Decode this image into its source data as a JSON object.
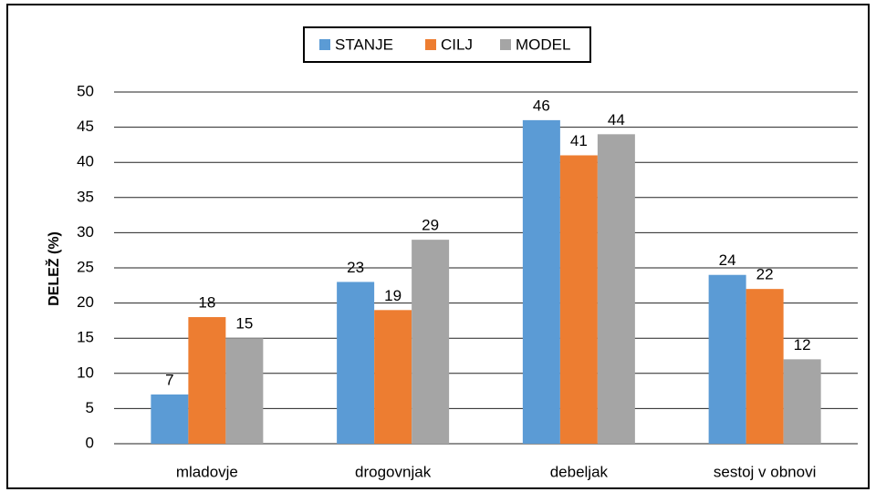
{
  "chart_data": {
    "type": "bar",
    "y_label": "DELEŽ (%)",
    "categories": [
      "mladovje",
      "drogovnjak",
      "debeljak",
      "sestoj v obnovi"
    ],
    "series": [
      {
        "name": "STANJE",
        "color": "#5b9bd5",
        "values": [
          7,
          23,
          46,
          24
        ]
      },
      {
        "name": "CILJ",
        "color": "#ed7d31",
        "values": [
          18,
          19,
          41,
          22
        ]
      },
      {
        "name": "MODEL",
        "color": "#a5a5a5",
        "values": [
          15,
          29,
          44,
          12
        ]
      }
    ],
    "ylim": [
      0,
      50
    ],
    "yticks": [
      0,
      5,
      10,
      15,
      20,
      25,
      30,
      35,
      40,
      45,
      50
    ],
    "grid": true,
    "legend": "top"
  }
}
